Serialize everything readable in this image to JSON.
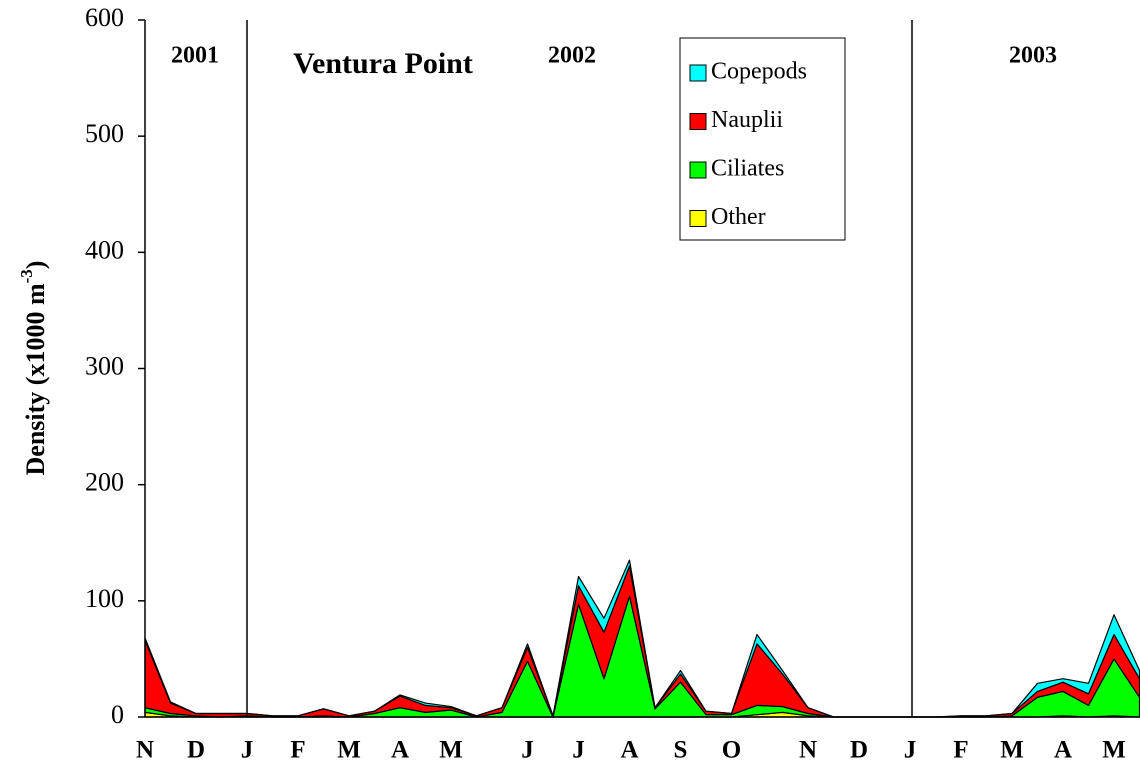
{
  "chart_data": {
    "type": "stacked_area",
    "title": "Ventura Point",
    "y_label": {
      "text": "Density (x1000 m",
      "superscript": "-3",
      "suffix": ")"
    },
    "year_labels": [
      "2001",
      "2002",
      "2003"
    ],
    "categories": [
      "N",
      null,
      "D",
      null,
      "J",
      null,
      "F",
      null,
      "M",
      null,
      "A",
      null,
      "M",
      null,
      null,
      "J",
      null,
      "J",
      null,
      "A",
      null,
      "S",
      null,
      "O",
      null,
      null,
      "N",
      null,
      "D",
      null,
      "J",
      null,
      "F",
      null,
      "M",
      null,
      "A",
      null,
      "M",
      null
    ],
    "series": [
      {
        "name": "Copepods",
        "color": "#00ffff",
        "values": [
          2,
          1,
          0,
          0,
          0,
          0,
          0,
          0,
          0,
          0,
          1,
          2,
          1,
          0,
          0,
          3,
          0,
          8,
          12,
          5,
          0,
          3,
          0,
          0,
          8,
          3,
          0,
          0,
          0,
          0,
          0,
          0,
          0,
          0,
          0,
          7,
          3,
          9,
          17,
          7
        ]
      },
      {
        "name": "Nauplii",
        "color": "#ff0000",
        "values": [
          58,
          9,
          2,
          3,
          2,
          1,
          1,
          6,
          1,
          2,
          10,
          6,
          2,
          1,
          4,
          12,
          1,
          16,
          40,
          26,
          1,
          7,
          3,
          1,
          53,
          28,
          5,
          0,
          0,
          0,
          0,
          0,
          1,
          1,
          2,
          5,
          8,
          10,
          21,
          16
        ]
      },
      {
        "name": "Ciliates",
        "color": "#00ff00",
        "values": [
          4,
          2,
          1,
          0,
          1,
          0,
          0,
          1,
          0,
          3,
          8,
          4,
          6,
          0,
          4,
          48,
          0,
          97,
          33,
          104,
          7,
          30,
          2,
          2,
          8,
          5,
          2,
          0,
          0,
          0,
          0,
          0,
          0,
          0,
          1,
          17,
          21,
          10,
          49,
          17
        ]
      },
      {
        "name": "Other",
        "color": "#ffff00",
        "values": [
          4,
          1,
          0,
          0,
          0,
          0,
          0,
          0,
          0,
          0,
          0,
          0,
          0,
          0,
          0,
          0,
          0,
          0,
          0,
          0,
          0,
          0,
          0,
          0,
          2,
          4,
          1,
          0,
          0,
          0,
          0,
          0,
          0,
          0,
          0,
          0,
          1,
          0,
          1,
          0
        ]
      }
    ],
    "ylim": [
      0,
      600
    ],
    "yticks": [
      0,
      100,
      200,
      300,
      400,
      500,
      600
    ],
    "grid": false
  }
}
